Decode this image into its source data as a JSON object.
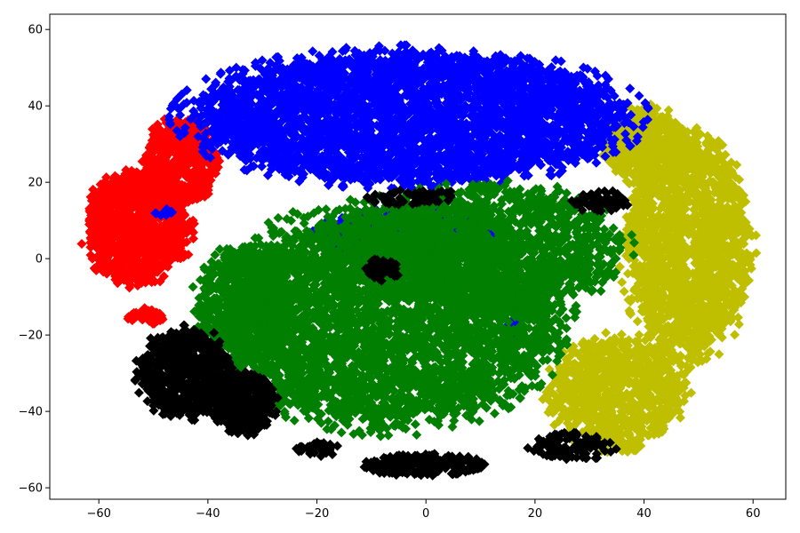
{
  "chart_data": {
    "type": "scatter",
    "marker": "diamond",
    "xlim": [
      -69,
      66
    ],
    "ylim": [
      -63,
      64
    ],
    "xticks": [
      -60,
      -40,
      -20,
      0,
      20,
      40,
      60
    ],
    "yticks": [
      60,
      40,
      20,
      0,
      -20,
      -40,
      -60
    ],
    "xtick_labels": [
      "−60",
      "−40",
      "−20",
      "0",
      "20",
      "40",
      "60"
    ],
    "ytick_labels": [
      "60",
      "40",
      "20",
      "0",
      "−20",
      "−40",
      "−60"
    ],
    "grid": false,
    "title": "",
    "xlabel": "",
    "ylabel": "",
    "series": [
      {
        "color": "#ff0000",
        "regions": [
          {
            "cx": -53,
            "cy": 8,
            "rx": 10,
            "ry": 15,
            "n": 1100
          },
          {
            "cx": -45,
            "cy": 25,
            "rx": 7,
            "ry": 12,
            "n": 600
          },
          {
            "cx": -51,
            "cy": -15,
            "rx": 4,
            "ry": 2,
            "n": 60
          }
        ]
      },
      {
        "color": "#bfbf00",
        "regions": [
          {
            "cx": 48,
            "cy": 3,
            "rx": 12,
            "ry": 30,
            "n": 1700
          },
          {
            "cx": 35,
            "cy": -35,
            "rx": 13,
            "ry": 15,
            "n": 900
          },
          {
            "cx": 40,
            "cy": 30,
            "rx": 8,
            "ry": 10,
            "n": 500
          }
        ]
      },
      {
        "color": "#0000ff",
        "regions": [
          {
            "cx": -3,
            "cy": 37,
            "rx": 42,
            "ry": 18,
            "n": 3800
          },
          {
            "cx": -3,
            "cy": 6,
            "rx": 18,
            "ry": 7,
            "n": 500
          },
          {
            "cx": 16,
            "cy": -18,
            "rx": 2,
            "ry": 2,
            "n": 20
          },
          {
            "cx": -48,
            "cy": 12,
            "rx": 2,
            "ry": 1,
            "n": 10
          }
        ]
      },
      {
        "color": "#007f00",
        "regions": [
          {
            "cx": -7,
            "cy": -15,
            "rx": 33,
            "ry": 30,
            "n": 4200
          },
          {
            "cx": 12,
            "cy": 3,
            "rx": 25,
            "ry": 17,
            "n": 1400
          },
          {
            "cx": -33,
            "cy": -12,
            "rx": 10,
            "ry": 16,
            "n": 600
          }
        ]
      },
      {
        "color": "#000000",
        "regions": [
          {
            "cx": -44,
            "cy": -30,
            "rx": 9,
            "ry": 12,
            "n": 700
          },
          {
            "cx": -33,
            "cy": -38,
            "rx": 6,
            "ry": 8,
            "n": 400
          },
          {
            "cx": 0,
            "cy": -54,
            "rx": 12,
            "ry": 3,
            "n": 250
          },
          {
            "cx": 27,
            "cy": -49,
            "rx": 8,
            "ry": 4,
            "n": 100
          },
          {
            "cx": -8,
            "cy": -3,
            "rx": 3,
            "ry": 3,
            "n": 60
          },
          {
            "cx": 32,
            "cy": 15,
            "rx": 5,
            "ry": 3,
            "n": 50
          },
          {
            "cx": -2,
            "cy": 16,
            "rx": 10,
            "ry": 2,
            "n": 60
          },
          {
            "cx": -20,
            "cy": -50,
            "rx": 4,
            "ry": 2,
            "n": 40
          }
        ]
      }
    ]
  }
}
